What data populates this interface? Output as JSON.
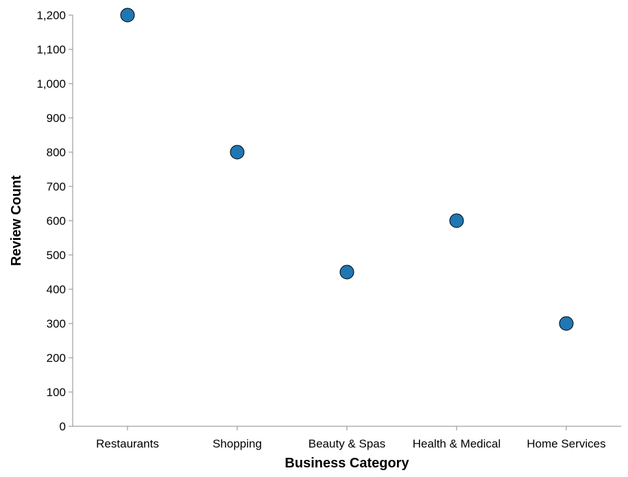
{
  "chart_data": {
    "type": "scatter",
    "title": "",
    "xlabel": "Business Category",
    "ylabel": "Review Count",
    "categories": [
      "Restaurants",
      "Shopping",
      "Beauty & Spas",
      "Health & Medical",
      "Home Services"
    ],
    "values": [
      1200,
      800,
      450,
      600,
      300
    ],
    "ylim": [
      0,
      1200
    ],
    "yticks": [
      0,
      100,
      200,
      300,
      400,
      500,
      600,
      700,
      800,
      900,
      1000,
      1100,
      1200
    ],
    "ytick_labels": [
      "0",
      "100",
      "200",
      "300",
      "400",
      "500",
      "600",
      "700",
      "800",
      "900",
      "1,000",
      "1,100",
      "1,200"
    ],
    "grid": false,
    "legend": "none",
    "point_color": "#1f77b4",
    "point_stroke": "#000000"
  }
}
